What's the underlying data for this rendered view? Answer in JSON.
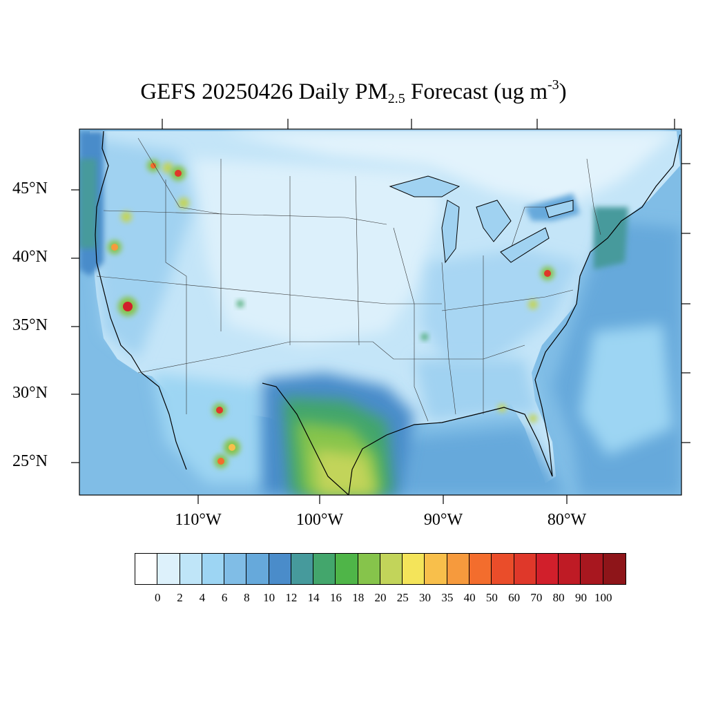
{
  "title": {
    "prefix": "GEFS 20250426 Daily PM",
    "sub": "2.5",
    "mid": " Forecast (ug m",
    "sup": "-3",
    "suffix": ")"
  },
  "lat_labels": [
    "45°N",
    "40°N",
    "35°N",
    "30°N",
    "25°N"
  ],
  "lon_labels": [
    "110°W",
    "100°W",
    "90°W",
    "80°W"
  ],
  "colorbar": {
    "labels": [
      "0",
      "2",
      "4",
      "6",
      "8",
      "10",
      "12",
      "14",
      "16",
      "18",
      "20",
      "25",
      "30",
      "35",
      "40",
      "50",
      "60",
      "70",
      "80",
      "90",
      "100"
    ],
    "colors": [
      "#ffffff",
      "#ddf1fb",
      "#bfe5f8",
      "#9dd5f3",
      "#80bde6",
      "#66a9db",
      "#4a8cca",
      "#469a9c",
      "#43a66c",
      "#4fb548",
      "#86c44b",
      "#c2d45a",
      "#f4e45a",
      "#f8bf4b",
      "#f69a3d",
      "#f36d2d",
      "#ea4d2a",
      "#df382a",
      "#d11f2b",
      "#bf1b25",
      "#a8171f",
      "#8e1519"
    ]
  },
  "legend_colors": {
    "ocean": "#78b4e0",
    "land": "#c9e8f9"
  }
}
